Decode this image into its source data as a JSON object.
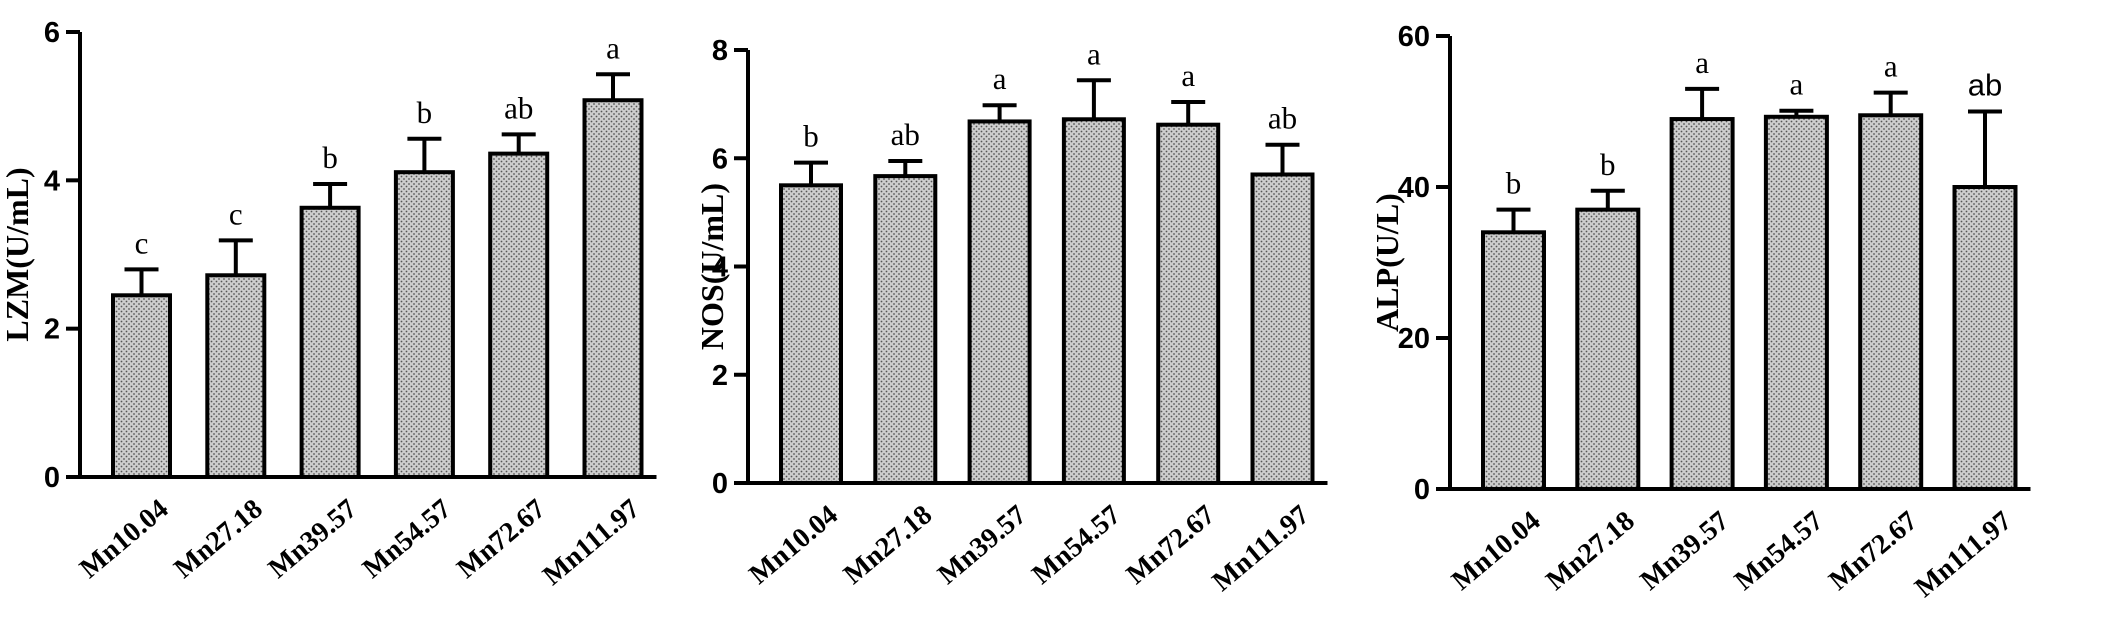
{
  "chart_data": [
    {
      "type": "bar",
      "ylabel": "LZM(U/mL)",
      "categories": [
        "Mn10.04",
        "Mn27.18",
        "Mn39.57",
        "Mn54.57",
        "Mn72.67",
        "Mn111.97"
      ],
      "values": [
        2.45,
        2.72,
        3.63,
        4.11,
        4.36,
        5.08
      ],
      "errors": [
        0.35,
        0.47,
        0.32,
        0.45,
        0.26,
        0.35
      ],
      "significance": [
        "c",
        "c",
        "b",
        "b",
        "ab",
        "a"
      ],
      "ylim": [
        0,
        6
      ],
      "yticks": [
        "0",
        "2",
        "4",
        "6"
      ],
      "grid": false,
      "bar_color": "#c9c9c9"
    },
    {
      "type": "bar",
      "ylabel": "NOS(U/mL)",
      "categories": [
        "Mn10.04",
        "Mn27.18",
        "Mn39.57",
        "Mn54.57",
        "Mn72.67",
        "Mn111.97"
      ],
      "values": [
        5.5,
        5.67,
        6.68,
        6.72,
        6.62,
        5.7
      ],
      "errors": [
        0.42,
        0.28,
        0.3,
        0.72,
        0.42,
        0.55
      ],
      "significance": [
        "b",
        "ab",
        "a",
        "a",
        "a",
        "ab"
      ],
      "ylim": [
        0,
        8
      ],
      "yticks": [
        "0",
        "2",
        "4",
        "6",
        "8"
      ],
      "grid": false,
      "bar_color": "#c9c9c9"
    },
    {
      "type": "bar",
      "ylabel": "ALP(U/L)",
      "categories": [
        "Mn10.04",
        "Mn27.18",
        "Mn39.57",
        "Mn54.57",
        "Mn72.67",
        "Mn111.97"
      ],
      "values": [
        34,
        37,
        49,
        49.3,
        49.5,
        40
      ],
      "errors": [
        3,
        2.5,
        4,
        0.8,
        3,
        10
      ],
      "significance": [
        "b",
        "b",
        "a",
        "a",
        "a",
        "ab"
      ],
      "ylim": [
        0,
        60
      ],
      "yticks": [
        "0",
        "20",
        "40",
        "60"
      ],
      "grid": false,
      "bar_color": "#c9c9c9"
    }
  ]
}
